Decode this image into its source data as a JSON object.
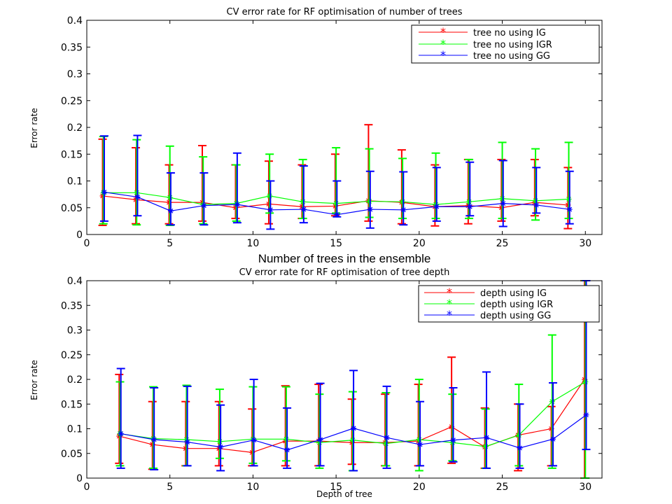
{
  "chart_data": [
    {
      "type": "line",
      "title": "CV error rate for RF optimisation of number of trees",
      "xlabel": "Number of trees in the ensemble",
      "ylabel": "Error rate",
      "xlim": [
        0,
        31
      ],
      "ylim": [
        0,
        0.4
      ],
      "xticks": [
        "0",
        "5",
        "10",
        "15",
        "20",
        "25",
        "30"
      ],
      "yticks": [
        "0",
        "0.05",
        "0.1",
        "0.15",
        "0.2",
        "0.25",
        "0.3",
        "0.35",
        "0.4"
      ],
      "legend_position": "top-right",
      "grid": false,
      "x": [
        1,
        3,
        5,
        7,
        9,
        11,
        13,
        15,
        17,
        19,
        21,
        23,
        25,
        27,
        29
      ],
      "series": [
        {
          "name": "tree no using IG",
          "color": "#ff0000",
          "values": [
            0.072,
            0.065,
            0.06,
            0.06,
            0.05,
            0.057,
            0.052,
            0.053,
            0.063,
            0.06,
            0.052,
            0.054,
            0.05,
            0.06,
            0.055
          ],
          "upper": [
            0.178,
            0.162,
            0.13,
            0.166,
            0.13,
            0.137,
            0.13,
            0.15,
            0.205,
            0.158,
            0.13,
            0.14,
            0.14,
            0.14,
            0.125
          ],
          "lower": [
            0.017,
            0.02,
            0.02,
            0.025,
            0.03,
            0.02,
            0.03,
            0.035,
            0.025,
            0.02,
            0.016,
            0.02,
            0.025,
            0.035,
            0.011
          ]
        },
        {
          "name": "tree no using IGR",
          "color": "#00ff00",
          "values": [
            0.078,
            0.078,
            0.069,
            0.056,
            0.058,
            0.072,
            0.061,
            0.058,
            0.062,
            0.061,
            0.056,
            0.061,
            0.067,
            0.063,
            0.066
          ],
          "upper": [
            0.183,
            0.177,
            0.165,
            0.145,
            0.13,
            0.15,
            0.14,
            0.162,
            0.16,
            0.142,
            0.152,
            0.14,
            0.172,
            0.16,
            0.172
          ],
          "lower": [
            0.02,
            0.018,
            0.017,
            0.02,
            0.025,
            0.04,
            0.03,
            0.04,
            0.032,
            0.03,
            0.03,
            0.03,
            0.03,
            0.027,
            0.03
          ]
        },
        {
          "name": "tree no using GG",
          "color": "#0000ff",
          "values": [
            0.079,
            0.07,
            0.044,
            0.054,
            0.056,
            0.046,
            0.047,
            0.037,
            0.047,
            0.046,
            0.052,
            0.052,
            0.058,
            0.055,
            0.047
          ],
          "upper": [
            0.184,
            0.185,
            0.115,
            0.115,
            0.152,
            0.1,
            0.128,
            0.1,
            0.118,
            0.117,
            0.125,
            0.135,
            0.138,
            0.125,
            0.118
          ],
          "lower": [
            0.025,
            0.035,
            0.018,
            0.018,
            0.022,
            0.01,
            0.022,
            0.033,
            0.012,
            0.018,
            0.025,
            0.035,
            0.015,
            0.04,
            0.02
          ]
        }
      ]
    },
    {
      "type": "line",
      "title": "CV error rate for RF optimisation of tree depth",
      "xlabel": "Depth of tree",
      "ylabel": "Error rate",
      "xlim": [
        0,
        31
      ],
      "ylim": [
        0,
        0.4
      ],
      "xticks": [
        "0",
        "5",
        "10",
        "15",
        "20",
        "25",
        "30"
      ],
      "yticks": [
        "0",
        "0.05",
        "0.1",
        "0.15",
        "0.2",
        "0.25",
        "0.3",
        "0.35",
        "0.4"
      ],
      "legend_position": "top-right",
      "grid": false,
      "x": [
        2,
        4,
        6,
        8,
        10,
        12,
        14,
        16,
        18,
        20,
        22,
        24,
        26,
        28,
        30
      ],
      "series": [
        {
          "name": "depth using IG",
          "color": "#ff0000",
          "values": [
            0.085,
            0.068,
            0.06,
            0.06,
            0.052,
            0.075,
            0.075,
            0.072,
            0.072,
            0.075,
            0.104,
            0.063,
            0.087,
            0.1,
            0.2
          ],
          "upper": [
            0.21,
            0.155,
            0.155,
            0.155,
            0.14,
            0.187,
            0.19,
            0.16,
            0.17,
            0.19,
            0.245,
            0.142,
            0.15,
            0.145,
            0.4
          ],
          "lower": [
            0.03,
            0.018,
            0.025,
            0.025,
            0.025,
            0.025,
            0.025,
            0.028,
            0.025,
            0.025,
            0.03,
            0.02,
            0.015,
            0.025,
            0.0
          ]
        },
        {
          "name": "depth using IGR",
          "color": "#00ff00",
          "values": [
            0.09,
            0.08,
            0.078,
            0.074,
            0.079,
            0.079,
            0.072,
            0.077,
            0.07,
            0.078,
            0.072,
            0.064,
            0.087,
            0.155,
            0.195
          ],
          "upper": [
            0.195,
            0.185,
            0.188,
            0.18,
            0.185,
            0.185,
            0.17,
            0.175,
            0.173,
            0.2,
            0.17,
            0.14,
            0.19,
            0.29,
            0.4
          ],
          "lower": [
            0.025,
            0.02,
            0.025,
            0.04,
            0.03,
            0.035,
            0.02,
            0.015,
            0.025,
            0.015,
            0.035,
            0.02,
            0.025,
            0.02,
            0.0
          ]
        },
        {
          "name": "depth using GG",
          "color": "#0000ff",
          "values": [
            0.09,
            0.078,
            0.073,
            0.063,
            0.077,
            0.057,
            0.078,
            0.101,
            0.082,
            0.068,
            0.077,
            0.082,
            0.061,
            0.079,
            0.128
          ],
          "upper": [
            0.222,
            0.183,
            0.186,
            0.148,
            0.2,
            0.142,
            0.192,
            0.218,
            0.186,
            0.155,
            0.183,
            0.215,
            0.15,
            0.193,
            0.4
          ],
          "lower": [
            0.02,
            0.017,
            0.025,
            0.015,
            0.025,
            0.02,
            0.025,
            0.015,
            0.02,
            0.025,
            0.033,
            0.02,
            0.02,
            0.025,
            0.058
          ]
        }
      ]
    }
  ]
}
